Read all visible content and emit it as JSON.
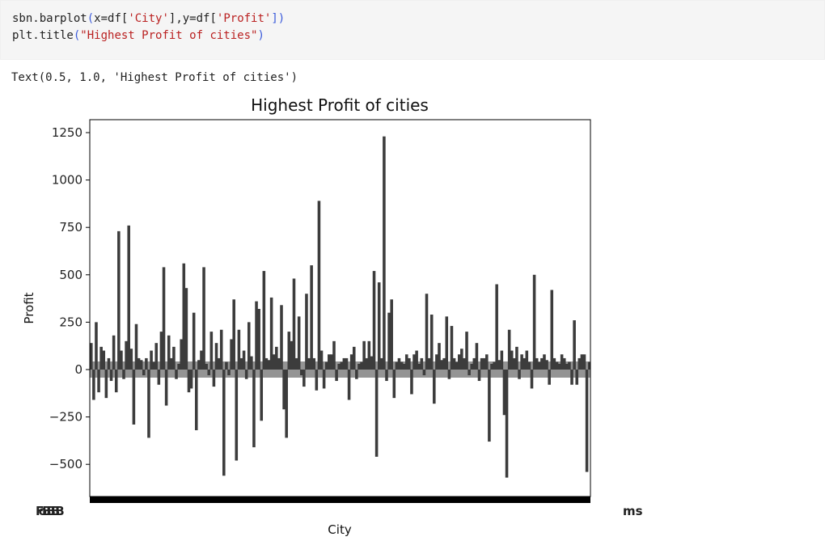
{
  "code": {
    "line1": [
      "sbn.barplot",
      "(",
      "x=df[",
      "'City'",
      "],y=df[",
      "'Profit'",
      "])"
    ],
    "line2": [
      "plt.title",
      "(",
      "\"Highest Profit of cities\"",
      ")"
    ]
  },
  "output_text": "Text(0.5, 1.0, 'Highest Profit of cities')",
  "chart_data": {
    "type": "bar",
    "title": "Highest Profit of cities",
    "xlabel": "City",
    "ylabel": "Profit",
    "ylim": [
      -650,
      1300
    ],
    "yticks": [
      -500,
      -250,
      0,
      250,
      500,
      750,
      1000,
      1250
    ],
    "ytick_labels": [
      "−500",
      "−250",
      "0",
      "250",
      "500",
      "750",
      "1000",
      "1250"
    ],
    "xtick_overlap_text": "FoBBBB",
    "xtick_overlap_text_right": "ms",
    "bar_color": "#3c3c3c",
    "values": [
      140,
      -160,
      250,
      -120,
      120,
      100,
      -150,
      60,
      -60,
      180,
      -120,
      730,
      100,
      -50,
      150,
      760,
      110,
      -290,
      240,
      60,
      50,
      -30,
      60,
      -360,
      100,
      40,
      140,
      -80,
      200,
      540,
      -190,
      180,
      60,
      120,
      -50,
      30,
      160,
      560,
      430,
      -120,
      -100,
      300,
      -320,
      50,
      100,
      540,
      30,
      -30,
      200,
      -90,
      140,
      60,
      210,
      -560,
      40,
      -30,
      160,
      370,
      -480,
      210,
      60,
      100,
      -50,
      250,
      70,
      -410,
      360,
      320,
      -270,
      520,
      60,
      50,
      380,
      80,
      120,
      60,
      340,
      -210,
      -360,
      200,
      150,
      480,
      60,
      280,
      -30,
      -90,
      400,
      60,
      550,
      60,
      -110,
      890,
      100,
      -100,
      40,
      80,
      80,
      150,
      -60,
      30,
      40,
      60,
      60,
      -160,
      80,
      120,
      -50,
      30,
      40,
      150,
      60,
      150,
      70,
      520,
      -460,
      460,
      60,
      1230,
      -60,
      300,
      370,
      -150,
      40,
      60,
      40,
      30,
      80,
      60,
      -130,
      80,
      100,
      30,
      60,
      -30,
      400,
      60,
      290,
      -180,
      80,
      140,
      50,
      60,
      280,
      -50,
      230,
      60,
      40,
      80,
      110,
      60,
      200,
      -30,
      30,
      60,
      140,
      -60,
      60,
      60,
      80,
      -380,
      30,
      40,
      450,
      50,
      100,
      -240,
      -570,
      210,
      100,
      60,
      120,
      -50,
      80,
      60,
      100,
      40,
      -100,
      500,
      60,
      40,
      60,
      80,
      50,
      -80,
      420,
      60,
      40,
      30,
      80,
      60,
      30,
      40,
      -80,
      260,
      -80,
      60,
      80,
      80,
      -540,
      40
    ]
  }
}
